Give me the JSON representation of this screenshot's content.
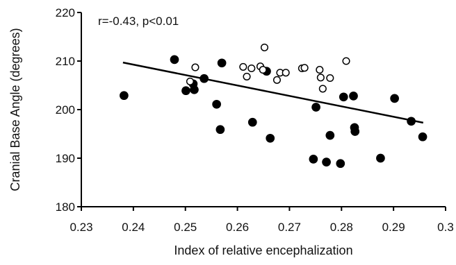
{
  "chart_data": {
    "type": "scatter",
    "title": "",
    "annotation": "r=-0.43, p<0.01",
    "xlabel": "Index of relative encephalization",
    "ylabel": "Cranial Base Angle (degrees)",
    "xlim": [
      0.23,
      0.3
    ],
    "ylim": [
      180,
      220
    ],
    "x_ticks": [
      0.23,
      0.24,
      0.25,
      0.26,
      0.27,
      0.28,
      0.29,
      0.3
    ],
    "x_tick_labels": [
      "0.23",
      "0.24",
      "0.25",
      "0.26",
      "0.27",
      "0.28",
      "0.29",
      "0.3"
    ],
    "y_ticks": [
      180,
      190,
      200,
      210,
      220
    ],
    "y_tick_labels": [
      "180",
      "190",
      "200",
      "210",
      "220"
    ],
    "grid": false,
    "legend": "none",
    "series": [
      {
        "marker": "filled-circle",
        "color": "#000000",
        "points": [
          [
            0.2382,
            202.9
          ],
          [
            0.2479,
            210.3
          ],
          [
            0.2501,
            203.9
          ],
          [
            0.2515,
            205.3
          ],
          [
            0.2517,
            204.1
          ],
          [
            0.2536,
            206.4
          ],
          [
            0.256,
            201.1
          ],
          [
            0.2567,
            195.9
          ],
          [
            0.257,
            209.6
          ],
          [
            0.2629,
            197.4
          ],
          [
            0.2656,
            207.9
          ],
          [
            0.2663,
            194.1
          ],
          [
            0.2746,
            189.8
          ],
          [
            0.2751,
            200.5
          ],
          [
            0.2771,
            189.2
          ],
          [
            0.2778,
            194.7
          ],
          [
            0.2798,
            188.9
          ],
          [
            0.2804,
            202.6
          ],
          [
            0.2823,
            202.8
          ],
          [
            0.2825,
            196.3
          ],
          [
            0.2826,
            195.5
          ],
          [
            0.2875,
            190.0
          ],
          [
            0.2902,
            202.3
          ],
          [
            0.2934,
            197.6
          ],
          [
            0.2956,
            194.4
          ]
        ]
      },
      {
        "marker": "open-circle",
        "color": "#000000",
        "points": [
          [
            0.2509,
            205.8
          ],
          [
            0.2519,
            208.7
          ],
          [
            0.2611,
            208.8
          ],
          [
            0.2618,
            206.8
          ],
          [
            0.2627,
            208.5
          ],
          [
            0.2644,
            208.9
          ],
          [
            0.2649,
            208.2
          ],
          [
            0.2652,
            212.8
          ],
          [
            0.2676,
            206.1
          ],
          [
            0.2682,
            207.6
          ],
          [
            0.2693,
            207.6
          ],
          [
            0.2724,
            208.5
          ],
          [
            0.2729,
            208.6
          ],
          [
            0.2758,
            208.2
          ],
          [
            0.276,
            206.6
          ],
          [
            0.2764,
            204.3
          ],
          [
            0.2778,
            206.5
          ],
          [
            0.2809,
            210.0
          ]
        ]
      }
    ],
    "trendline": {
      "type": "linear",
      "x_start": 0.238,
      "y_start": 209.7,
      "x_end": 0.2957,
      "y_end": 197.3
    }
  }
}
